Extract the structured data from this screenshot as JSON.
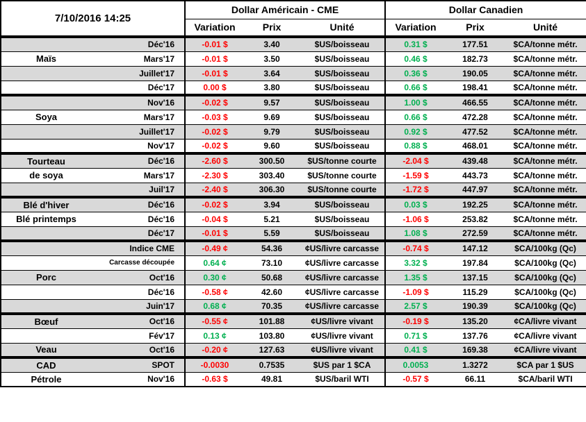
{
  "meta": {
    "timestamp": "7/10/2016 14:25"
  },
  "header": {
    "us_group": "Dollar Américain - CME",
    "ca_group": "Dollar Canadien",
    "cols": [
      "Variation",
      "Prix",
      "Unité"
    ]
  },
  "colors": {
    "up": "#00b050",
    "down": "#ff0000",
    "row_shade": "#d9d9d9"
  },
  "groups": [
    {
      "rows": [
        {
          "name": "",
          "label": "Déc'16",
          "us_var": "-0.01 $",
          "us_dir": "down",
          "us_price": "3.40",
          "us_unit": "$US/boisseau",
          "ca_var": "0.31 $",
          "ca_dir": "up",
          "ca_price": "177.51",
          "ca_unit": "$CA/tonne métr."
        },
        {
          "name": "Maïs",
          "label": "Mars'17",
          "us_var": "-0.01 $",
          "us_dir": "down",
          "us_price": "3.50",
          "us_unit": "$US/boisseau",
          "ca_var": "0.46 $",
          "ca_dir": "up",
          "ca_price": "182.73",
          "ca_unit": "$CA/tonne métr."
        },
        {
          "name": "",
          "label": "Juillet'17",
          "us_var": "-0.01 $",
          "us_dir": "down",
          "us_price": "3.64",
          "us_unit": "$US/boisseau",
          "ca_var": "0.36 $",
          "ca_dir": "up",
          "ca_price": "190.05",
          "ca_unit": "$CA/tonne métr."
        },
        {
          "name": "",
          "label": "Déc'17",
          "us_var": "0.00 $",
          "us_dir": "down",
          "us_price": "3.80",
          "us_unit": "$US/boisseau",
          "ca_var": "0.66 $",
          "ca_dir": "up",
          "ca_price": "198.41",
          "ca_unit": "$CA/tonne métr."
        }
      ]
    },
    {
      "rows": [
        {
          "name": "",
          "label": "Nov'16",
          "us_var": "-0.02 $",
          "us_dir": "down",
          "us_price": "9.57",
          "us_unit": "$US/boisseau",
          "ca_var": "1.00 $",
          "ca_dir": "up",
          "ca_price": "466.55",
          "ca_unit": "$CA/tonne métr."
        },
        {
          "name": "Soya",
          "label": "Mars'17",
          "us_var": "-0.03 $",
          "us_dir": "down",
          "us_price": "9.69",
          "us_unit": "$US/boisseau",
          "ca_var": "0.66 $",
          "ca_dir": "up",
          "ca_price": "472.28",
          "ca_unit": "$CA/tonne métr."
        },
        {
          "name": "",
          "label": "Juillet'17",
          "us_var": "-0.02 $",
          "us_dir": "down",
          "us_price": "9.79",
          "us_unit": "$US/boisseau",
          "ca_var": "0.92 $",
          "ca_dir": "up",
          "ca_price": "477.52",
          "ca_unit": "$CA/tonne métr."
        },
        {
          "name": "",
          "label": "Nov'17",
          "us_var": "-0.02 $",
          "us_dir": "down",
          "us_price": "9.60",
          "us_unit": "$US/boisseau",
          "ca_var": "0.88 $",
          "ca_dir": "up",
          "ca_price": "468.01",
          "ca_unit": "$CA/tonne métr."
        }
      ]
    },
    {
      "rows": [
        {
          "name": "Tourteau",
          "label": "Déc'16",
          "us_var": "-2.60 $",
          "us_dir": "down",
          "us_price": "300.50",
          "us_unit": "$US/tonne courte",
          "ca_var": "-2.04 $",
          "ca_dir": "down",
          "ca_price": "439.48",
          "ca_unit": "$CA/tonne métr."
        },
        {
          "name": "de soya",
          "label": "Mars'17",
          "us_var": "-2.30 $",
          "us_dir": "down",
          "us_price": "303.40",
          "us_unit": "$US/tonne courte",
          "ca_var": "-1.59 $",
          "ca_dir": "down",
          "ca_price": "443.73",
          "ca_unit": "$CA/tonne métr."
        },
        {
          "name": "",
          "label": "Juil'17",
          "us_var": "-2.40 $",
          "us_dir": "down",
          "us_price": "306.30",
          "us_unit": "$US/tonne courte",
          "ca_var": "-1.72 $",
          "ca_dir": "down",
          "ca_price": "447.97",
          "ca_unit": "$CA/tonne métr."
        }
      ]
    },
    {
      "rows": [
        {
          "name": "Blé d'hiver",
          "label": "Déc'16",
          "us_var": "-0.02 $",
          "us_dir": "down",
          "us_price": "3.94",
          "us_unit": "$US/boisseau",
          "ca_var": "0.03 $",
          "ca_dir": "up",
          "ca_price": "192.25",
          "ca_unit": "$CA/tonne métr."
        },
        {
          "name": "Blé printemps",
          "label": "Déc'16",
          "us_var": "-0.04 $",
          "us_dir": "down",
          "us_price": "5.21",
          "us_unit": "$US/boisseau",
          "ca_var": "-1.06 $",
          "ca_dir": "down",
          "ca_price": "253.82",
          "ca_unit": "$CA/tonne métr."
        },
        {
          "name": "",
          "label": "Déc'17",
          "us_var": "-0.01 $",
          "us_dir": "down",
          "us_price": "5.59",
          "us_unit": "$US/boisseau",
          "ca_var": "1.08 $",
          "ca_dir": "up",
          "ca_price": "272.59",
          "ca_unit": "$CA/tonne métr."
        }
      ]
    },
    {
      "rows": [
        {
          "name": "",
          "label": "Indice CME",
          "us_var": "-0.49 ¢",
          "us_dir": "down",
          "us_price": "54.36",
          "us_unit": "¢US/livre carcasse",
          "ca_var": "-0.74 $",
          "ca_dir": "down",
          "ca_price": "147.12",
          "ca_unit": "$CA/100kg (Qc)"
        },
        {
          "name": "",
          "label": "Carcasse découpée",
          "label_small": true,
          "us_var": "0.64 ¢",
          "us_dir": "up",
          "us_price": "73.10",
          "us_unit": "¢US/livre carcasse",
          "ca_var": "3.32 $",
          "ca_dir": "up",
          "ca_price": "197.84",
          "ca_unit": "$CA/100kg (Qc)"
        },
        {
          "name": "Porc",
          "label": "Oct'16",
          "us_var": "0.30 ¢",
          "us_dir": "up",
          "us_price": "50.68",
          "us_unit": "¢US/livre carcasse",
          "ca_var": "1.35 $",
          "ca_dir": "up",
          "ca_price": "137.15",
          "ca_unit": "$CA/100kg (Qc)"
        },
        {
          "name": "",
          "label": "Déc'16",
          "us_var": "-0.58 ¢",
          "us_dir": "down",
          "us_price": "42.60",
          "us_unit": "¢US/livre carcasse",
          "ca_var": "-1.09 $",
          "ca_dir": "down",
          "ca_price": "115.29",
          "ca_unit": "$CA/100kg (Qc)"
        },
        {
          "name": "",
          "label": "Juin'17",
          "us_var": "0.68 ¢",
          "us_dir": "up",
          "us_price": "70.35",
          "us_unit": "¢US/livre carcasse",
          "ca_var": "2.57 $",
          "ca_dir": "up",
          "ca_price": "190.39",
          "ca_unit": "$CA/100kg (Qc)"
        }
      ]
    },
    {
      "rows": [
        {
          "name": "Bœuf",
          "label": "Oct'16",
          "us_var": "-0.55 ¢",
          "us_dir": "down",
          "us_price": "101.88",
          "us_unit": "¢US/livre vivant",
          "ca_var": "-0.19 $",
          "ca_dir": "down",
          "ca_price": "135.20",
          "ca_unit": "¢CA/livre vivant"
        },
        {
          "name": "",
          "label": "Fév'17",
          "us_var": "0.13 ¢",
          "us_dir": "up",
          "us_price": "103.80",
          "us_unit": "¢US/livre vivant",
          "ca_var": "0.71 $",
          "ca_dir": "up",
          "ca_price": "137.76",
          "ca_unit": "¢CA/livre vivant"
        },
        {
          "name": "Veau",
          "label": "Oct'16",
          "us_var": "-0.20 ¢",
          "us_dir": "down",
          "us_price": "127.63",
          "us_unit": "¢US/livre vivant",
          "ca_var": "0.41 $",
          "ca_dir": "up",
          "ca_price": "169.38",
          "ca_unit": "¢CA/livre vivant"
        }
      ]
    },
    {
      "rows": [
        {
          "name": "CAD",
          "label": "SPOT",
          "us_var": "-0.0030",
          "us_dir": "down",
          "us_price": "0.7535",
          "us_unit": "$US par 1 $CA",
          "ca_var": "0.0053",
          "ca_dir": "up",
          "ca_price": "1.3272",
          "ca_unit": "$CA par 1 $US"
        },
        {
          "name": "Pétrole",
          "label": "Nov'16",
          "us_var": "-0.63 $",
          "us_dir": "down",
          "us_price": "49.81",
          "us_unit": "$US/baril WTI",
          "ca_var": "-0.57 $",
          "ca_dir": "down",
          "ca_price": "66.11",
          "ca_unit": "$CA/baril WTI"
        }
      ]
    }
  ]
}
